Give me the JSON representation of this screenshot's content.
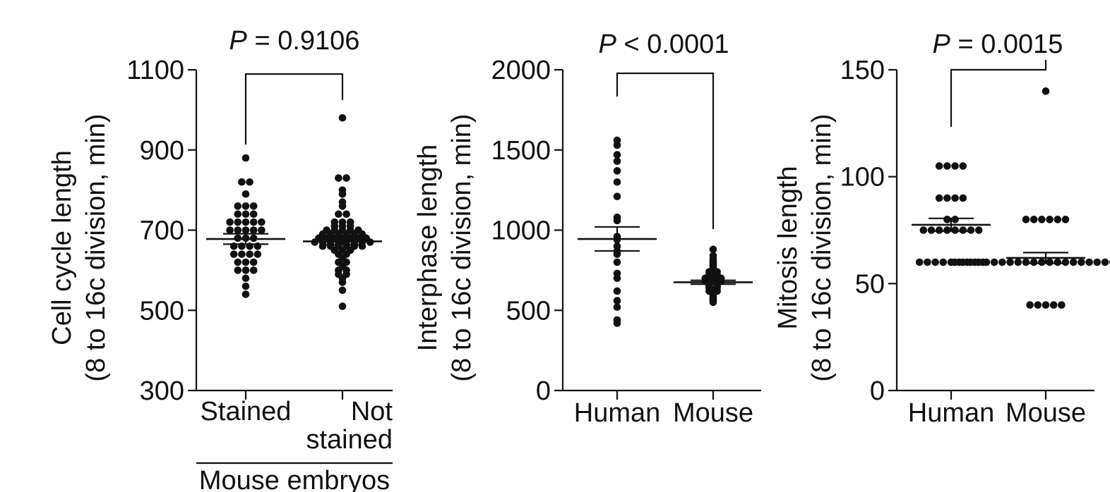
{
  "chart_data": [
    {
      "type": "scatter",
      "panel_id": "cell-cycle",
      "ylabel_lines": [
        "Cell cycle length",
        "(8 to 16c division, min)"
      ],
      "ylim": [
        300,
        1100
      ],
      "yticks": [
        300,
        500,
        700,
        900,
        1100
      ],
      "categories": [
        "Stained",
        "Not stained"
      ],
      "category_label_lines": [
        [
          "Stained"
        ],
        [
          "Not",
          "stained"
        ]
      ],
      "group_label": "Mouse embryos",
      "p_label": "P",
      "p_value": "= 0.9106",
      "series": [
        {
          "values": [
            880,
            820,
            820,
            790,
            760,
            760,
            760,
            740,
            740,
            740,
            720,
            720,
            720,
            720,
            720,
            700,
            700,
            700,
            700,
            700,
            680,
            680,
            680,
            660,
            660,
            660,
            660,
            640,
            640,
            640,
            640,
            620,
            620,
            620,
            600,
            600,
            600,
            580,
            560,
            540
          ],
          "mean": 678,
          "sem": 13
        },
        {
          "values": [
            980,
            830,
            830,
            800,
            790,
            770,
            760,
            740,
            740,
            720,
            720,
            720,
            710,
            710,
            710,
            700,
            700,
            700,
            700,
            700,
            690,
            690,
            690,
            690,
            690,
            690,
            680,
            680,
            680,
            680,
            680,
            680,
            680,
            670,
            670,
            670,
            670,
            670,
            670,
            670,
            670,
            660,
            660,
            660,
            660,
            660,
            660,
            650,
            650,
            650,
            640,
            640,
            630,
            620,
            620,
            610,
            600,
            600,
            590,
            590,
            580,
            570,
            550,
            510
          ],
          "mean": 672,
          "sem": 8
        }
      ]
    },
    {
      "type": "scatter",
      "panel_id": "interphase",
      "ylabel_lines": [
        "Interphase length",
        "(8 to 16c division, min)"
      ],
      "ylim": [
        0,
        2000
      ],
      "yticks": [
        0,
        500,
        1000,
        1500,
        2000
      ],
      "categories": [
        "Human",
        "Mouse"
      ],
      "category_label_lines": [
        [
          "Human"
        ],
        [
          "Mouse"
        ]
      ],
      "group_label": "",
      "p_label": "P",
      "p_value": "< 0.0001",
      "series": [
        {
          "values": [
            1560,
            1530,
            1470,
            1430,
            1370,
            1300,
            1210,
            1080,
            1060,
            960,
            940,
            900,
            870,
            850,
            800,
            730,
            700,
            620,
            560,
            520,
            440,
            420
          ],
          "mean": 945,
          "sem": 75
        },
        {
          "values": [
            880,
            840,
            820,
            810,
            800,
            790,
            780,
            770,
            760,
            750,
            740,
            740,
            730,
            720,
            720,
            710,
            710,
            700,
            700,
            700,
            690,
            690,
            680,
            680,
            680,
            670,
            670,
            660,
            660,
            650,
            650,
            640,
            640,
            630,
            620,
            620,
            610,
            600,
            590,
            580,
            570,
            560,
            550
          ],
          "mean": 675,
          "sem": 12
        }
      ]
    },
    {
      "type": "scatter",
      "panel_id": "mitosis",
      "ylabel_lines": [
        "Mitosis length",
        "(8 to 16c division, min)"
      ],
      "ylim": [
        0,
        150
      ],
      "yticks": [
        0,
        50,
        100,
        150
      ],
      "categories": [
        "Human",
        "Mouse"
      ],
      "category_label_lines": [
        [
          "Human"
        ],
        [
          "Mouse"
        ]
      ],
      "group_label": "",
      "p_label": "P",
      "p_value": "= 0.0015",
      "series": [
        {
          "values": [
            105,
            105,
            105,
            105,
            90,
            90,
            90,
            90,
            80,
            80,
            75,
            75,
            75,
            75,
            75,
            75,
            75,
            75,
            60,
            60,
            60,
            60,
            60,
            60,
            60,
            60,
            60
          ],
          "mean": 77.5,
          "sem": 3
        },
        {
          "values": [
            140,
            80,
            80,
            80,
            80,
            80,
            80,
            60,
            60,
            60,
            60,
            60,
            60,
            60,
            60,
            60,
            60,
            60,
            60,
            60,
            60,
            60,
            60,
            60,
            60,
            60,
            60,
            60,
            60,
            60,
            60,
            40,
            40,
            40,
            40,
            40
          ],
          "mean": 62,
          "sem": 2.5
        }
      ]
    }
  ]
}
